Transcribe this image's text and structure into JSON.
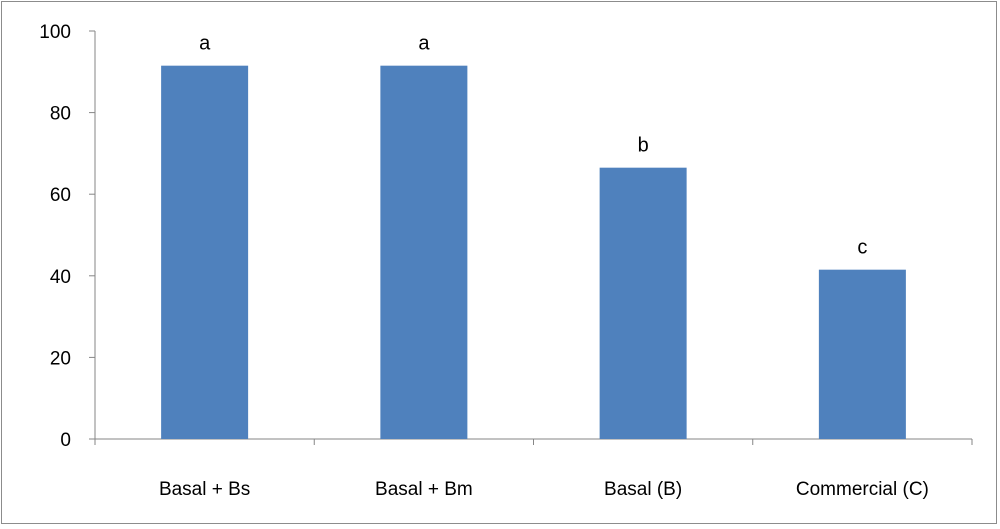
{
  "chart_data": {
    "type": "bar",
    "categories": [
      "Basal + Bs",
      "Basal + Bm",
      "Basal (B)",
      "Commercial (C)"
    ],
    "values": [
      91.5,
      91.5,
      66.5,
      41.5
    ],
    "data_labels": [
      "a",
      "a",
      "b",
      "c"
    ],
    "ylim": [
      0,
      100
    ],
    "yticks": [
      0,
      20,
      40,
      60,
      80,
      100
    ],
    "title": "",
    "xlabel": "",
    "ylabel": "",
    "grid": false,
    "legend": "none",
    "bar_color": "#4f81bd"
  }
}
